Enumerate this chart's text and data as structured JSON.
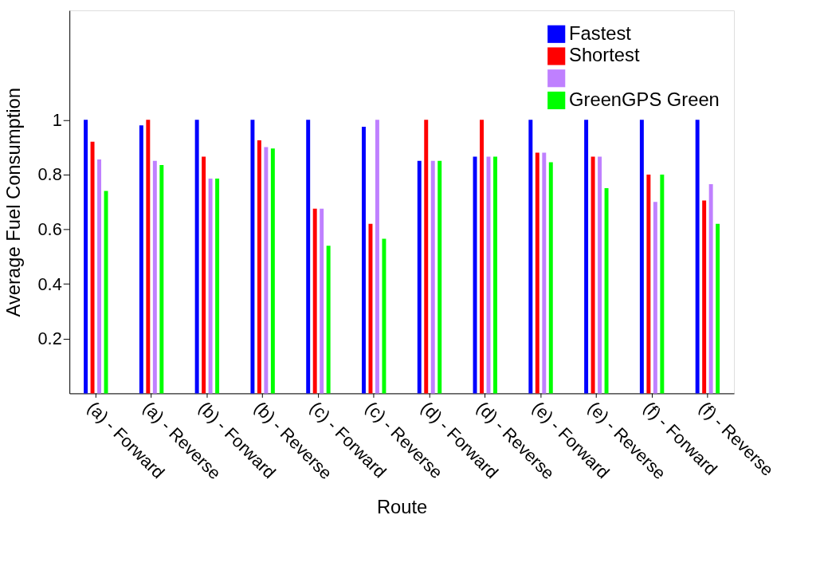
{
  "chart_data": {
    "type": "bar",
    "xlabel": "Route",
    "ylabel": "Average Fuel Consumption",
    "categories": [
      "(a) - Forward",
      "(a) - Reverse",
      "(b) - Forward",
      "(b) - Reverse",
      "(c) - Forward",
      "(c) - Reverse",
      "(d) - Forward",
      "(d) - Reverse",
      "(e) - Forward",
      "(e) - Reverse",
      "(f) - Forward",
      "(f) - Reverse"
    ],
    "series": [
      {
        "name": "Fastest",
        "color": "#0000ff",
        "values": [
          1,
          0.98,
          1,
          1,
          1,
          0.975,
          0.85,
          0.865,
          1,
          1,
          1,
          1
        ]
      },
      {
        "name": "Shortest",
        "color": "#ff0000",
        "values": [
          0.92,
          1,
          0.865,
          0.925,
          0.675,
          0.62,
          1,
          1,
          0.88,
          0.865,
          0.8,
          0.705
        ]
      },
      {
        "color": "#bf80ff",
        "values": [
          0.855,
          0.85,
          0.785,
          0.9,
          0.675,
          1,
          0.85,
          0.865,
          0.88,
          0.865,
          0.7,
          0.765
        ]
      },
      {
        "name": "GreenGPS Green",
        "color": "#00ff00",
        "values": [
          0.74,
          0.835,
          0.785,
          0.895,
          0.54,
          0.565,
          0.85,
          0.865,
          0.845,
          0.75,
          0.8,
          0.62
        ]
      }
    ],
    "ylim": [
      0,
      1.4
    ],
    "yticks": [
      0.2,
      0.4,
      0.6,
      0.8,
      1
    ],
    "grid": false,
    "legend": "top right"
  }
}
